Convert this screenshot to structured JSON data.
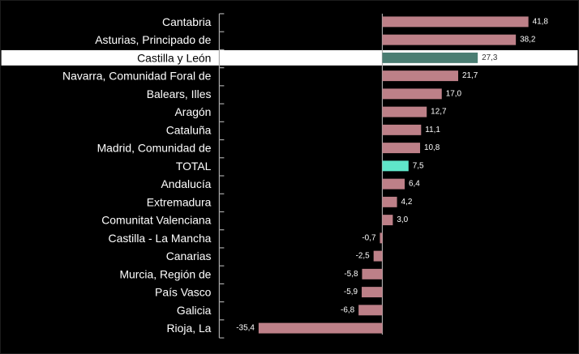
{
  "chart_data": {
    "type": "bar",
    "orientation": "horizontal",
    "categories": [
      "Cantabria",
      "Asturias, Principado de",
      "Castilla y León",
      "Navarra, Comunidad Foral de",
      "Balears, Illes",
      "Aragón",
      "Cataluña",
      "Madrid, Comunidad de",
      "TOTAL",
      "Andalucía",
      "Extremadura",
      "Comunitat Valenciana",
      "Castilla - La Mancha",
      "Canarias",
      "Murcia, Región de",
      "País Vasco",
      "Galicia",
      "Rioja, La"
    ],
    "values": [
      41.8,
      38.2,
      27.3,
      21.7,
      17.0,
      12.7,
      11.1,
      10.8,
      7.5,
      6.4,
      4.2,
      3.0,
      -0.7,
      -2.5,
      -5.8,
      -5.9,
      -6.8,
      -35.4
    ],
    "value_labels": [
      "41,8",
      "38,2",
      "27,3",
      "21,7",
      "17,0",
      "12,7",
      "11,1",
      "10,8",
      "7,5",
      "6,4",
      "4,2",
      "3,0",
      "-0,7",
      "-2,5",
      "-5,8",
      "-5,9",
      "-6,8",
      "-35,4"
    ],
    "highlighted": "Castilla y León",
    "total_category": "TOTAL",
    "xlim": [
      -35.4,
      41.8
    ],
    "grid": false,
    "colors": {
      "default": "#bd8088",
      "highlighted": "#4a7d72",
      "total": "#5fe6c9",
      "background": "#000000",
      "highlight_band": "#ffffff"
    }
  }
}
